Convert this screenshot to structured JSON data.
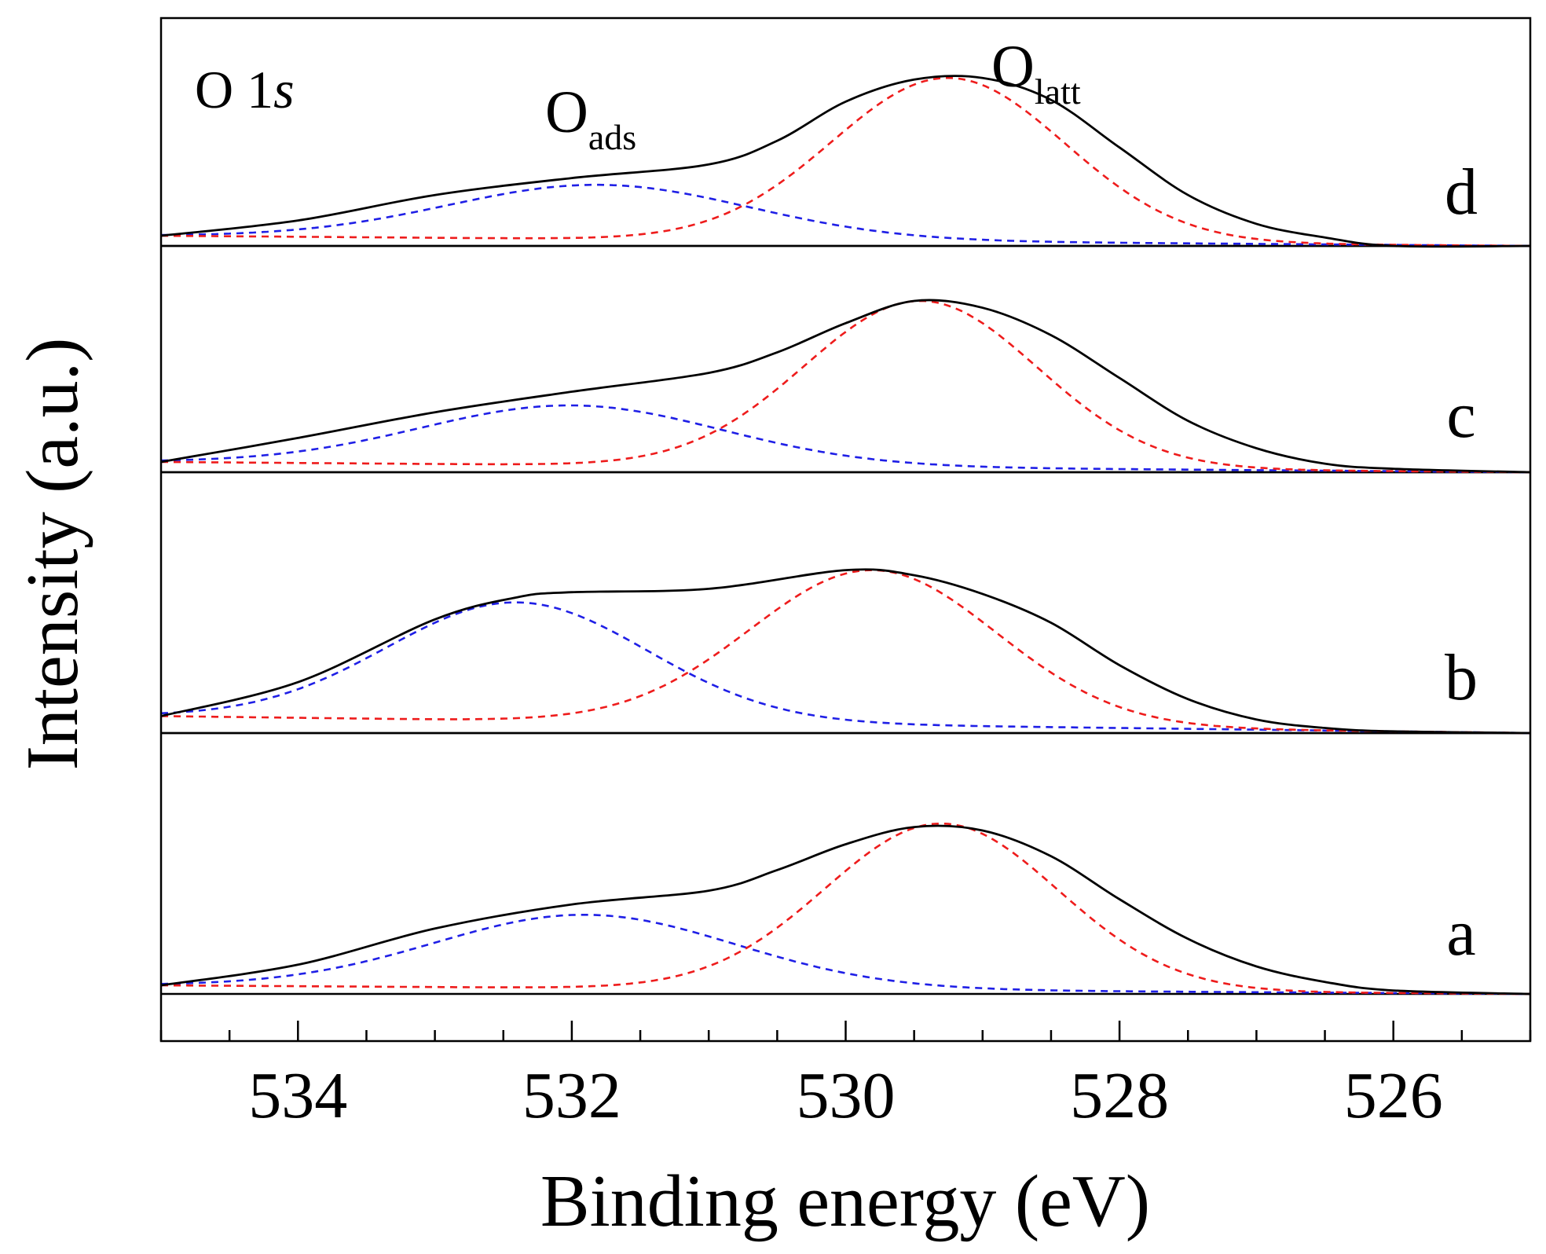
{
  "chart_data": {
    "type": "line",
    "title": "",
    "xlabel": "Binding energy (eV)",
    "ylabel": "Intensity (a.u.)",
    "xlim": [
      535,
      525
    ],
    "x_reversed": true,
    "x_major_ticks": [
      534,
      532,
      530,
      528,
      526
    ],
    "x_tick_labels": [
      "534",
      "532",
      "530",
      "528",
      "526"
    ],
    "x_minor_step": 0.5,
    "grid": false,
    "y_ticks": false,
    "region_label": {
      "text": "O 1",
      "italic": "s"
    },
    "peak_labels": [
      {
        "base": "O",
        "sub": "ads",
        "at_ev": 532.3
      },
      {
        "base": "O",
        "sub": "latt",
        "at_ev": 529.0
      }
    ],
    "line_styles": {
      "measured": {
        "color": "#000000",
        "style": "solid"
      },
      "O_ads": {
        "color": "#1f1fe6",
        "style": "dashed"
      },
      "O_latt": {
        "color": "#ee1c1c",
        "style": "dashed"
      }
    },
    "panels": [
      {
        "label": "d",
        "baseline": {
          "start": 0.06,
          "end": 0.0
        },
        "O_ads": {
          "center": 531.8,
          "height": 0.36,
          "sigma": 1.1
        },
        "O_latt": {
          "center": 529.25,
          "height": 0.99,
          "sigma": 0.85
        },
        "measured_points": [
          [
            535,
            0.06
          ],
          [
            534,
            0.15
          ],
          [
            533,
            0.3
          ],
          [
            532,
            0.4
          ],
          [
            531,
            0.48
          ],
          [
            530.5,
            0.62
          ],
          [
            530,
            0.85
          ],
          [
            529.5,
            0.98
          ],
          [
            529,
            0.99
          ],
          [
            528.5,
            0.86
          ],
          [
            528,
            0.58
          ],
          [
            527.5,
            0.3
          ],
          [
            527,
            0.13
          ],
          [
            526.5,
            0.05
          ],
          [
            526,
            0.0
          ],
          [
            525,
            0.0
          ]
        ]
      },
      {
        "label": "c",
        "baseline": {
          "start": 0.06,
          "end": 0.0
        },
        "O_ads": {
          "center": 532.0,
          "height": 0.39,
          "sigma": 1.1
        },
        "O_latt": {
          "center": 529.45,
          "height": 1.0,
          "sigma": 0.85
        },
        "measured_points": [
          [
            535,
            0.06
          ],
          [
            534,
            0.2
          ],
          [
            533,
            0.35
          ],
          [
            532,
            0.47
          ],
          [
            531,
            0.58
          ],
          [
            530.5,
            0.7
          ],
          [
            530,
            0.87
          ],
          [
            529.5,
            1.0
          ],
          [
            529,
            0.96
          ],
          [
            528.5,
            0.8
          ],
          [
            528,
            0.55
          ],
          [
            527.5,
            0.3
          ],
          [
            527,
            0.14
          ],
          [
            526.5,
            0.05
          ],
          [
            526,
            0.02
          ],
          [
            525,
            0.0
          ]
        ]
      },
      {
        "label": "b",
        "baseline": {
          "start": 0.1,
          "end": 0.0
        },
        "O_ads": {
          "center": 532.4,
          "height": 0.77,
          "sigma": 0.95
        },
        "O_latt": {
          "center": 529.8,
          "height": 0.96,
          "sigma": 0.9
        },
        "measured_points": [
          [
            535,
            0.1
          ],
          [
            534,
            0.3
          ],
          [
            533,
            0.67
          ],
          [
            532.4,
            0.8
          ],
          [
            532,
            0.83
          ],
          [
            531,
            0.85
          ],
          [
            530,
            0.96
          ],
          [
            529.5,
            0.93
          ],
          [
            529,
            0.82
          ],
          [
            528.5,
            0.65
          ],
          [
            528,
            0.4
          ],
          [
            527.5,
            0.2
          ],
          [
            527,
            0.08
          ],
          [
            526.5,
            0.03
          ],
          [
            526,
            0.01
          ],
          [
            525,
            0.0
          ]
        ]
      },
      {
        "label": "a",
        "baseline": {
          "start": 0.05,
          "end": 0.0
        },
        "O_ads": {
          "center": 531.9,
          "height": 0.46,
          "sigma": 1.1
        },
        "O_latt": {
          "center": 529.3,
          "height": 0.99,
          "sigma": 0.85
        },
        "measured_points": [
          [
            535,
            0.05
          ],
          [
            534,
            0.17
          ],
          [
            533,
            0.38
          ],
          [
            532,
            0.52
          ],
          [
            531,
            0.6
          ],
          [
            530.5,
            0.72
          ],
          [
            530,
            0.87
          ],
          [
            529.5,
            0.97
          ],
          [
            529,
            0.95
          ],
          [
            528.5,
            0.8
          ],
          [
            528,
            0.55
          ],
          [
            527.5,
            0.32
          ],
          [
            527,
            0.16
          ],
          [
            526.5,
            0.07
          ],
          [
            526,
            0.02
          ],
          [
            525,
            0.0
          ]
        ]
      }
    ]
  }
}
